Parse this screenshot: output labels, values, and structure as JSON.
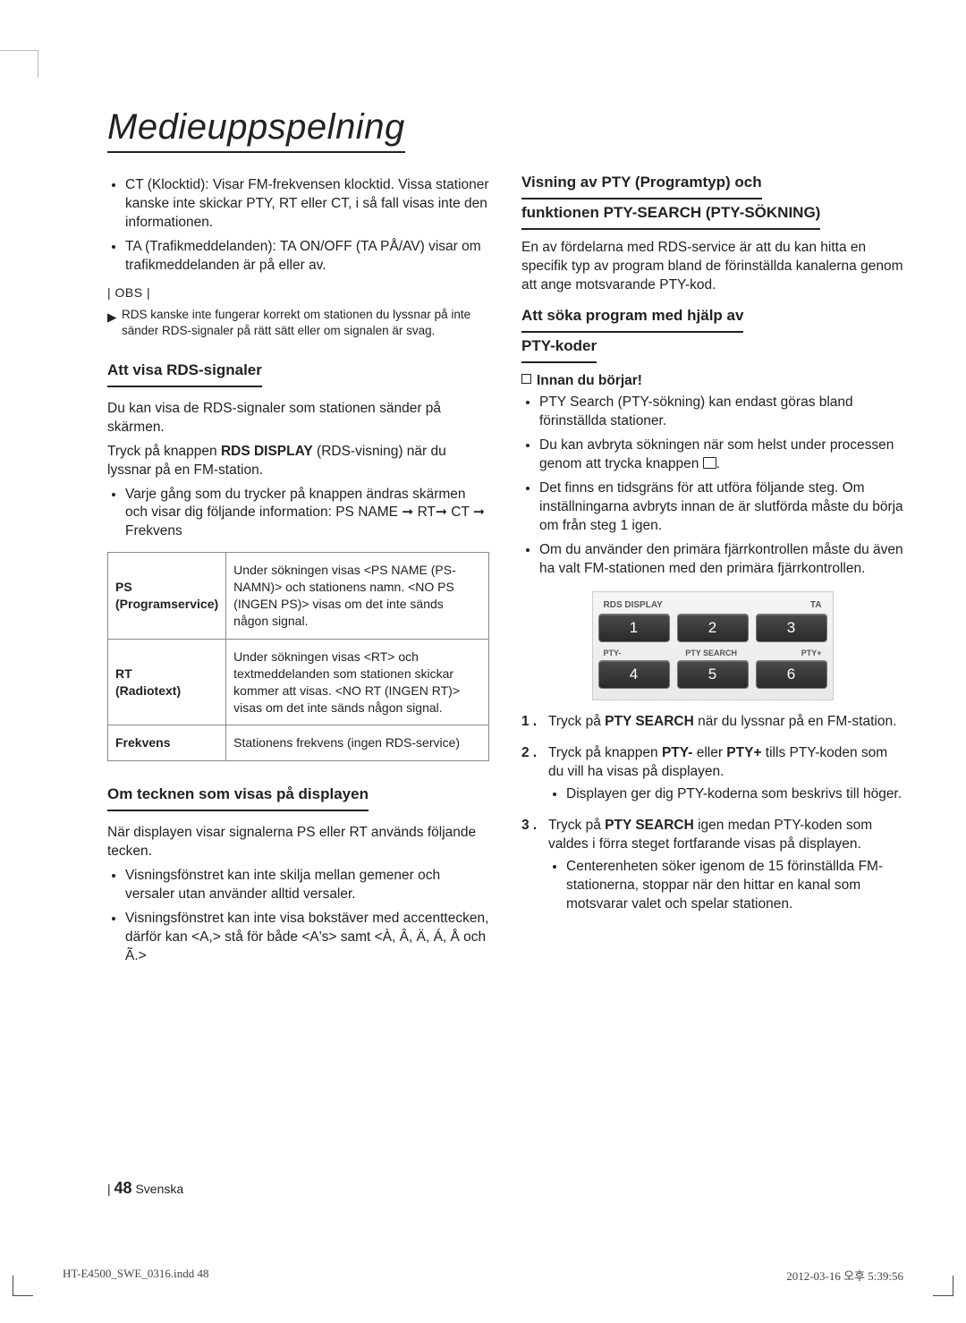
{
  "title": "Medieuppspelning",
  "left": {
    "bullets_top": [
      "CT (Klocktid): Visar FM-frekvensen klocktid. Vissa stationer kanske inte skickar PTY, RT eller CT, i så fall visas inte den informationen.",
      "TA (Trafikmeddelanden): TA ON/OFF (TA PÅ/AV) visar om trafikmeddelanden är på eller av."
    ],
    "obs_label": "| OBS |",
    "obs_note": "RDS kanske inte fungerar korrekt om stationen du lyssnar på inte sänder RDS-signaler på rätt sätt eller om signalen är svag.",
    "h1": "Att visa RDS-signaler",
    "p1": "Du kan visa de RDS-signaler som stationen sänder på skärmen.",
    "p2a": "Tryck på knappen ",
    "p2b": "RDS DISPLAY",
    "p2c": " (RDS-visning) när du lyssnar på en FM-station.",
    "bullet_arrow": "Varje gång som du trycker på knappen ändras skärmen och visar dig följande information: PS NAME ➞ RT➞ CT ➞ Frekvens",
    "table": [
      {
        "k1": "PS",
        "k2": "(Programservice)",
        "v": "Under sökningen visas <PS NAME (PS-NAMN)> och stationens namn. <NO PS (INGEN PS)> visas om det inte sänds någon signal."
      },
      {
        "k1": "RT",
        "k2": "(Radiotext)",
        "v": "Under sökningen visas <RT> och textmeddelanden som stationen skickar kommer att visas. <NO RT (INGEN RT)> visas om det inte sänds någon signal."
      },
      {
        "k1": "Frekvens",
        "k2": "",
        "v": "Stationens frekvens (ingen RDS-service)"
      }
    ],
    "h2": "Om tecknen som visas på displayen",
    "p3": "När displayen visar signalerna PS eller RT används följande tecken.",
    "bullets_bottom": [
      "Visningsfönstret kan inte skilja mellan gemener och versaler utan använder alltid versaler.",
      "Visningsfönstret kan inte visa bokstäver med accenttecken, därför kan <A,> stå för både <A's> samt <À, Â, Ä, Á, Å och Ã.>"
    ]
  },
  "right": {
    "h1_l1": "Visning av PTY (Programtyp) och",
    "h1_l2": "funktionen PTY-SEARCH (PTY-SÖKNING)",
    "p1": "En av fördelarna med RDS-service är att du kan hitta en specifik typ av program bland de förinställda kanalerna genom att ange motsvarande PTY-kod.",
    "h2_l1": "Att söka program med hjälp av",
    "h2_l2": "PTY-koder",
    "sub_h": "Innan du börjar!",
    "bullets": [
      "PTY Search (PTY-sökning) kan endast göras bland förinställda stationer.",
      "Du kan avbryta sökningen när som helst under processen genom att trycka knappen STOPICON.",
      "Det finns en tidsgräns för att utföra följande steg. Om inställningarna avbryts innan de är slutförda måste du börja om från steg 1 igen.",
      "Om du använder den primära fjärrkontrollen måste du även ha valt FM-stationen med den primära fjärrkontrollen."
    ],
    "remote": {
      "top_labels": {
        "l": "RDS DISPLAY",
        "r": "TA"
      },
      "row1": [
        "1",
        "2",
        "3"
      ],
      "mid_labels": {
        "l": "PTY-",
        "c": "PTY SEARCH",
        "r": "PTY+"
      },
      "row2": [
        "4",
        "5",
        "6"
      ]
    },
    "steps": [
      {
        "n": "1 .",
        "pre": "Tryck på ",
        "b": "PTY SEARCH",
        "post": " när du lyssnar på en FM-station."
      },
      {
        "n": "2 .",
        "pre": "Tryck på knappen ",
        "b": "PTY-",
        "mid": " eller ",
        "b2": "PTY+",
        "post": " tills PTY-koden som du vill ha visas på displayen.",
        "sub": "Displayen ger dig PTY-koderna som beskrivs till höger."
      },
      {
        "n": "3 .",
        "pre": "Tryck på ",
        "b": "PTY SEARCH",
        "post": " igen medan PTY-koden som valdes i förra steget fortfarande visas på displayen.",
        "sub": "Centerenheten söker igenom de 15 förinställda FM-stationerna, stoppar när den hittar en kanal som motsvarar valet och spelar stationen."
      }
    ]
  },
  "footer": {
    "page": "48",
    "lang": "Svenska"
  },
  "printline": {
    "l": "HT-E4500_SWE_0316.indd   48",
    "r": "2012-03-16   오후 5:39:56"
  }
}
